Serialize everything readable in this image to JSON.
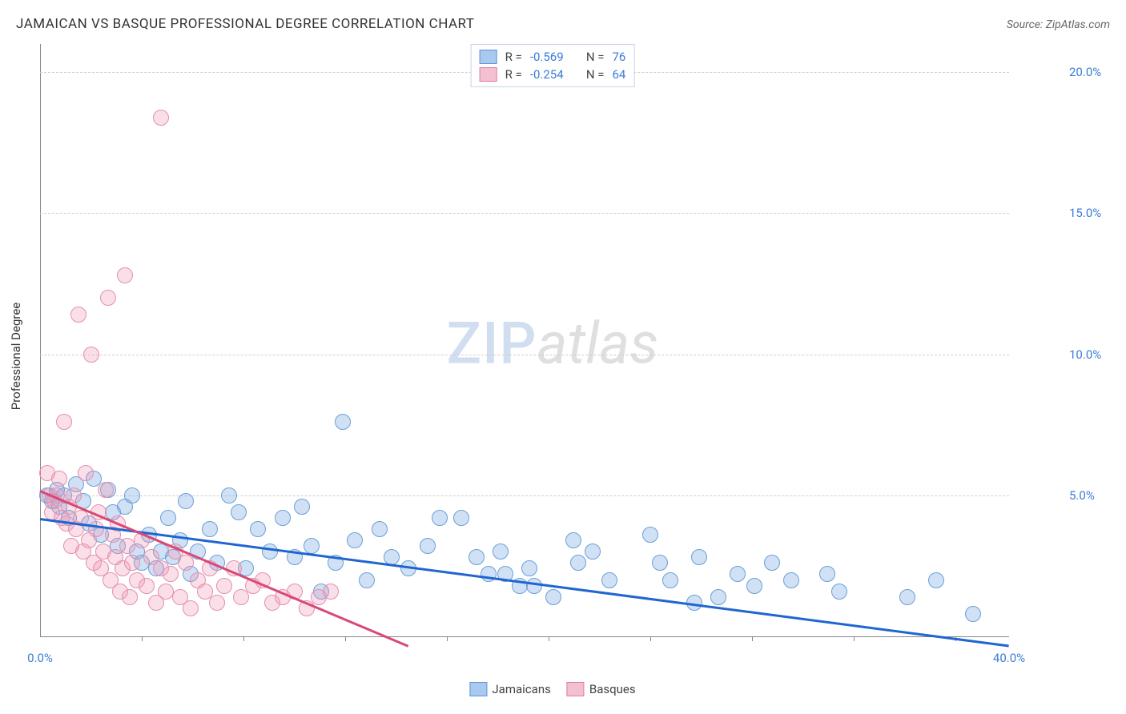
{
  "title": "JAMAICAN VS BASQUE PROFESSIONAL DEGREE CORRELATION CHART",
  "source": "Source: ZipAtlas.com",
  "ylabel": "Professional Degree",
  "watermark_zip": "ZIP",
  "watermark_atlas": "atlas",
  "chart": {
    "type": "scatter",
    "xlim": [
      0,
      40
    ],
    "ylim": [
      0,
      21
    ],
    "background_color": "#ffffff",
    "grid_color": "#d0d0d0",
    "yticks": [
      {
        "v": 5,
        "label": "5.0%"
      },
      {
        "v": 10,
        "label": "10.0%"
      },
      {
        "v": 15,
        "label": "15.0%"
      },
      {
        "v": 20,
        "label": "20.0%"
      }
    ],
    "xtick_positions": [
      4.2,
      8.4,
      12.6,
      16.8,
      21.0,
      25.2,
      29.4,
      33.6,
      37.8
    ],
    "x_min_label": "0.0%",
    "x_max_label": "40.0%",
    "tick_label_color": "#3b7dd8",
    "marker_radius": 10,
    "marker_stroke_width": 1,
    "series": [
      {
        "name": "Jamaicans",
        "fill": "rgba(120,170,225,0.35)",
        "stroke": "#6b9fd6",
        "swatch_fill": "#a9c9ee",
        "swatch_stroke": "#5d94d9",
        "R_label": "R =",
        "R": "-0.569",
        "N_label": "N =",
        "N": "76",
        "trend": {
          "x1": 0,
          "y1": 4.2,
          "x2": 40,
          "y2": -0.3,
          "color": "#1f66d0",
          "width": 2.5
        },
        "points": [
          [
            0.3,
            5.0
          ],
          [
            0.5,
            4.8
          ],
          [
            0.7,
            5.2
          ],
          [
            0.8,
            4.6
          ],
          [
            1.0,
            5.0
          ],
          [
            1.2,
            4.2
          ],
          [
            1.5,
            5.4
          ],
          [
            1.8,
            4.8
          ],
          [
            2.0,
            4.0
          ],
          [
            2.2,
            5.6
          ],
          [
            2.5,
            3.6
          ],
          [
            2.8,
            5.2
          ],
          [
            3.0,
            4.4
          ],
          [
            3.2,
            3.2
          ],
          [
            3.5,
            4.6
          ],
          [
            3.8,
            5.0
          ],
          [
            4.0,
            3.0
          ],
          [
            4.2,
            2.6
          ],
          [
            4.5,
            3.6
          ],
          [
            4.8,
            2.4
          ],
          [
            5.0,
            3.0
          ],
          [
            5.3,
            4.2
          ],
          [
            5.5,
            2.8
          ],
          [
            5.8,
            3.4
          ],
          [
            6.0,
            4.8
          ],
          [
            6.2,
            2.2
          ],
          [
            6.5,
            3.0
          ],
          [
            7.0,
            3.8
          ],
          [
            7.3,
            2.6
          ],
          [
            7.8,
            5.0
          ],
          [
            8.2,
            4.4
          ],
          [
            8.5,
            2.4
          ],
          [
            9.0,
            3.8
          ],
          [
            9.5,
            3.0
          ],
          [
            10.0,
            4.2
          ],
          [
            10.5,
            2.8
          ],
          [
            10.8,
            4.6
          ],
          [
            11.2,
            3.2
          ],
          [
            11.6,
            1.6
          ],
          [
            12.2,
            2.6
          ],
          [
            12.5,
            7.6
          ],
          [
            13.0,
            3.4
          ],
          [
            13.5,
            2.0
          ],
          [
            14.0,
            3.8
          ],
          [
            14.5,
            2.8
          ],
          [
            15.2,
            2.4
          ],
          [
            16.0,
            3.2
          ],
          [
            16.5,
            4.2
          ],
          [
            17.4,
            4.2
          ],
          [
            18.0,
            2.8
          ],
          [
            18.5,
            2.2
          ],
          [
            19.0,
            3.0
          ],
          [
            19.2,
            2.2
          ],
          [
            19.8,
            1.8
          ],
          [
            20.2,
            2.4
          ],
          [
            20.4,
            1.8
          ],
          [
            21.2,
            1.4
          ],
          [
            22.0,
            3.4
          ],
          [
            22.2,
            2.6
          ],
          [
            22.8,
            3.0
          ],
          [
            23.5,
            2.0
          ],
          [
            25.2,
            3.6
          ],
          [
            25.6,
            2.6
          ],
          [
            26.0,
            2.0
          ],
          [
            27.0,
            1.2
          ],
          [
            27.2,
            2.8
          ],
          [
            28.0,
            1.4
          ],
          [
            28.8,
            2.2
          ],
          [
            29.5,
            1.8
          ],
          [
            30.2,
            2.6
          ],
          [
            31.0,
            2.0
          ],
          [
            32.5,
            2.2
          ],
          [
            33.0,
            1.6
          ],
          [
            35.8,
            1.4
          ],
          [
            37.0,
            2.0
          ],
          [
            38.5,
            0.8
          ]
        ]
      },
      {
        "name": "Basques",
        "fill": "rgba(240,150,180,0.3)",
        "stroke": "#e48fad",
        "swatch_fill": "#f3c0d1",
        "swatch_stroke": "#e17ba0",
        "R_label": "R =",
        "R": "-0.254",
        "N_label": "N =",
        "N": "64",
        "trend": {
          "x1": 0,
          "y1": 5.2,
          "x2": 15.2,
          "y2": -0.3,
          "color": "#d94876",
          "width": 2.5
        },
        "points": [
          [
            0.3,
            5.8
          ],
          [
            0.4,
            5.0
          ],
          [
            0.5,
            4.4
          ],
          [
            0.6,
            4.8
          ],
          [
            0.7,
            5.0
          ],
          [
            0.8,
            5.6
          ],
          [
            0.9,
            4.2
          ],
          [
            1.0,
            7.6
          ],
          [
            1.1,
            4.0
          ],
          [
            1.2,
            4.6
          ],
          [
            1.3,
            3.2
          ],
          [
            1.4,
            5.0
          ],
          [
            1.5,
            3.8
          ],
          [
            1.6,
            11.4
          ],
          [
            1.7,
            4.2
          ],
          [
            1.8,
            3.0
          ],
          [
            1.9,
            5.8
          ],
          [
            2.0,
            3.4
          ],
          [
            2.1,
            10.0
          ],
          [
            2.2,
            2.6
          ],
          [
            2.3,
            3.8
          ],
          [
            2.4,
            4.4
          ],
          [
            2.5,
            2.4
          ],
          [
            2.6,
            3.0
          ],
          [
            2.7,
            5.2
          ],
          [
            2.8,
            12.0
          ],
          [
            2.9,
            2.0
          ],
          [
            3.0,
            3.6
          ],
          [
            3.1,
            2.8
          ],
          [
            3.2,
            4.0
          ],
          [
            3.3,
            1.6
          ],
          [
            3.4,
            2.4
          ],
          [
            3.5,
            12.8
          ],
          [
            3.6,
            3.2
          ],
          [
            3.7,
            1.4
          ],
          [
            3.8,
            2.6
          ],
          [
            4.0,
            2.0
          ],
          [
            4.2,
            3.4
          ],
          [
            4.4,
            1.8
          ],
          [
            4.6,
            2.8
          ],
          [
            4.8,
            1.2
          ],
          [
            5.0,
            2.4
          ],
          [
            5.0,
            18.4
          ],
          [
            5.2,
            1.6
          ],
          [
            5.4,
            2.2
          ],
          [
            5.6,
            3.0
          ],
          [
            5.8,
            1.4
          ],
          [
            6.0,
            2.6
          ],
          [
            6.2,
            1.0
          ],
          [
            6.5,
            2.0
          ],
          [
            6.8,
            1.6
          ],
          [
            7.0,
            2.4
          ],
          [
            7.3,
            1.2
          ],
          [
            7.6,
            1.8
          ],
          [
            8.0,
            2.4
          ],
          [
            8.3,
            1.4
          ],
          [
            8.8,
            1.8
          ],
          [
            9.2,
            2.0
          ],
          [
            9.6,
            1.2
          ],
          [
            10.0,
            1.4
          ],
          [
            10.5,
            1.6
          ],
          [
            11.0,
            1.0
          ],
          [
            11.5,
            1.4
          ],
          [
            12.0,
            1.6
          ]
        ]
      }
    ]
  }
}
